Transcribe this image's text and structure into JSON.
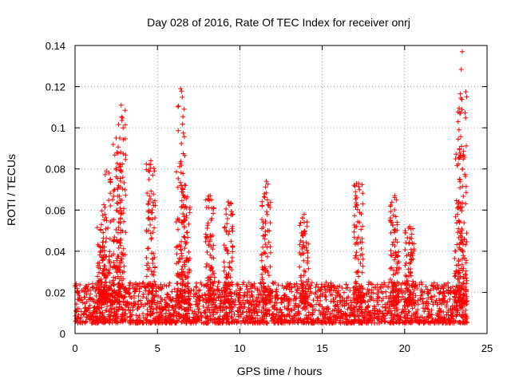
{
  "chart_data": {
    "type": "scatter",
    "title": "Day 028 of 2016, Rate Of TEC Index for receiver onrj",
    "xlabel": "GPS time / hours",
    "ylabel": "ROTI / TECUs",
    "xlim": [
      0,
      25
    ],
    "ylim": [
      0,
      0.14
    ],
    "xticks": [
      0,
      5,
      10,
      15,
      20,
      25
    ],
    "yticks": [
      0,
      0.02,
      0.04,
      0.06,
      0.08,
      0.1,
      0.12,
      0.14
    ],
    "xtick_labels": [
      "0",
      "5",
      "10",
      "15",
      "20",
      "25"
    ],
    "ytick_labels": [
      "0",
      "0.02",
      "0.04",
      "0.06",
      "0.08",
      "0.1",
      "0.12",
      "0.14"
    ],
    "grid": true,
    "marker": "+",
    "color": "#ff0000",
    "x_range_observed": [
      0,
      23.8
    ],
    "baseline_range": [
      0.005,
      0.025
    ],
    "peaks": [
      {
        "x": 1.6,
        "y": 0.053
      },
      {
        "x": 1.9,
        "y": 0.079
      },
      {
        "x": 2.5,
        "y": 0.095
      },
      {
        "x": 2.8,
        "y": 0.111
      },
      {
        "x": 4.6,
        "y": 0.084
      },
      {
        "x": 6.4,
        "y": 0.119
      },
      {
        "x": 6.7,
        "y": 0.072
      },
      {
        "x": 8.2,
        "y": 0.067
      },
      {
        "x": 9.3,
        "y": 0.064
      },
      {
        "x": 11.6,
        "y": 0.074
      },
      {
        "x": 13.9,
        "y": 0.058
      },
      {
        "x": 17.2,
        "y": 0.073
      },
      {
        "x": 19.4,
        "y": 0.067
      },
      {
        "x": 20.3,
        "y": 0.052
      },
      {
        "x": 23.3,
        "y": 0.099
      },
      {
        "x": 23.5,
        "y": 0.137
      }
    ]
  }
}
